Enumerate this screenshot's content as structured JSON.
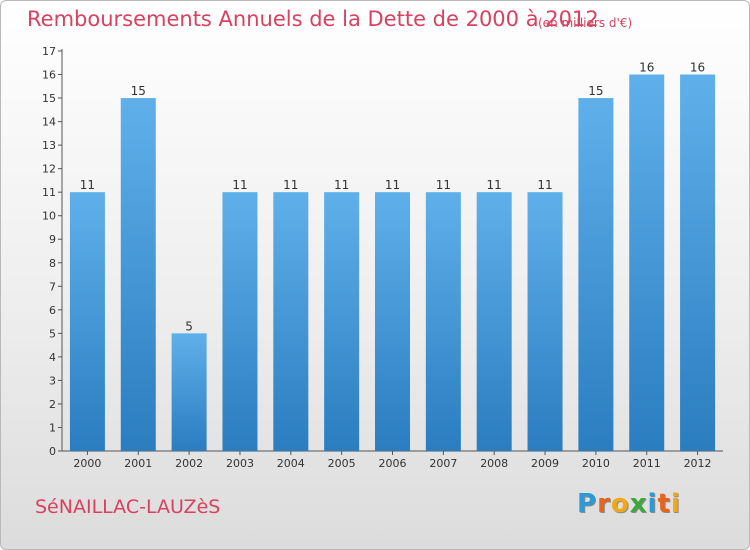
{
  "title": "Remboursements Annuels de la Dette de 2000 à 2012",
  "subtitle": "(en milliers d'€)",
  "town": "SéNAILLAC-LAUZèS",
  "logo": {
    "text": "Proxiti",
    "letters": [
      {
        "ch": "P",
        "color": "#2a9bd6"
      },
      {
        "ch": "r",
        "color": "#e8631c"
      },
      {
        "ch": "o",
        "color": "#f0a818"
      },
      {
        "ch": "x",
        "color": "#3aa83a"
      },
      {
        "ch": "i",
        "color": "#2a9bd6"
      },
      {
        "ch": "t",
        "color": "#e8631c"
      },
      {
        "ch": "i",
        "color": "#f0a818"
      }
    ]
  },
  "colors": {
    "bar_top": "#5fb0ea",
    "bar_bottom": "#2a7dbf",
    "accent_text": "#d9415f"
  },
  "chart_data": {
    "type": "bar",
    "categories": [
      "2000",
      "2001",
      "2002",
      "2003",
      "2004",
      "2005",
      "2006",
      "2007",
      "2008",
      "2009",
      "2010",
      "2011",
      "2012"
    ],
    "values": [
      11,
      15,
      5,
      11,
      11,
      11,
      11,
      11,
      11,
      11,
      15,
      16,
      16
    ],
    "data_labels": [
      "11",
      "15",
      "5",
      "11",
      "11",
      "11",
      "11",
      "11",
      "11",
      "11",
      "15",
      "16",
      "16"
    ],
    "title": "Remboursements Annuels de la Dette de 2000 à 2012",
    "xlabel": "",
    "ylabel": "",
    "ylim": [
      0,
      17
    ],
    "yticks": [
      0,
      1,
      2,
      3,
      4,
      5,
      6,
      7,
      8,
      9,
      10,
      11,
      12,
      13,
      14,
      15,
      16,
      17
    ],
    "grid": false,
    "legend": "none"
  }
}
